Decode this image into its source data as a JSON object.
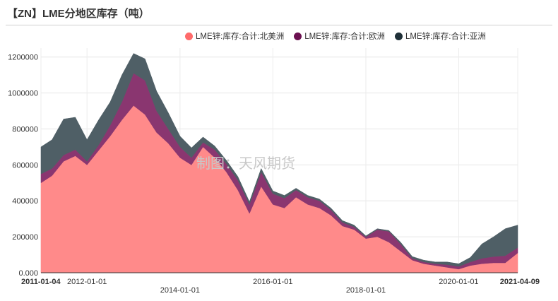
{
  "title": "【ZN】LME分地区库存（吨）",
  "watermark": "制图：天风期货",
  "colors": {
    "north_america": "#ff8a8a",
    "europe": "#8a3670",
    "asia": "#4f5f66"
  },
  "chart_data": {
    "type": "area",
    "stacked": true,
    "x": [
      "2011-01-04",
      "2011-04-01",
      "2011-07-01",
      "2011-10-01",
      "2012-01-01",
      "2012-04-01",
      "2012-07-01",
      "2012-10-01",
      "2013-01-01",
      "2013-04-01",
      "2013-07-01",
      "2013-10-01",
      "2014-01-01",
      "2014-04-01",
      "2014-07-01",
      "2014-10-01",
      "2015-01-01",
      "2015-04-01",
      "2015-07-01",
      "2015-10-01",
      "2016-01-01",
      "2016-04-01",
      "2016-07-01",
      "2016-10-01",
      "2017-01-01",
      "2017-04-01",
      "2017-07-01",
      "2017-10-01",
      "2018-01-01",
      "2018-04-01",
      "2018-07-01",
      "2018-10-01",
      "2019-01-01",
      "2019-04-01",
      "2019-07-01",
      "2019-10-01",
      "2020-01-01",
      "2020-04-01",
      "2020-07-01",
      "2020-10-01",
      "2021-01-01",
      "2021-04-09"
    ],
    "series": [
      {
        "name": "LME锌:库存:合计:北美洲",
        "values": [
          500000,
          540000,
          620000,
          650000,
          600000,
          680000,
          760000,
          850000,
          930000,
          880000,
          780000,
          720000,
          640000,
          600000,
          700000,
          640000,
          560000,
          460000,
          330000,
          480000,
          380000,
          360000,
          420000,
          380000,
          360000,
          320000,
          260000,
          240000,
          190000,
          200000,
          170000,
          120000,
          70000,
          50000,
          40000,
          30000,
          20000,
          40000,
          50000,
          55000,
          55000,
          110000
        ]
      },
      {
        "name": "LME锌:库存:合计:欧洲",
        "values": [
          50000,
          40000,
          35000,
          35000,
          20000,
          30000,
          60000,
          100000,
          180000,
          190000,
          120000,
          80000,
          60000,
          40000,
          25000,
          45000,
          45000,
          55000,
          50000,
          80000,
          60000,
          55000,
          40000,
          40000,
          40000,
          30000,
          20000,
          15000,
          10000,
          40000,
          60000,
          40000,
          10000,
          10000,
          10000,
          15000,
          15000,
          20000,
          30000,
          35000,
          40000,
          30000
        ]
      },
      {
        "name": "LME锌:库存:合计:亚洲",
        "values": [
          150000,
          160000,
          200000,
          180000,
          120000,
          140000,
          130000,
          150000,
          110000,
          120000,
          110000,
          90000,
          60000,
          55000,
          30000,
          20000,
          20000,
          20000,
          15000,
          20000,
          15000,
          15000,
          10000,
          10000,
          10000,
          10000,
          10000,
          10000,
          5000,
          5000,
          5000,
          10000,
          10000,
          10000,
          10000,
          15000,
          15000,
          25000,
          80000,
          110000,
          150000,
          125000
        ]
      }
    ],
    "ylim": [
      0,
      1250000
    ],
    "y_ticks": [
      0,
      200000,
      400000,
      600000,
      800000,
      1000000,
      1200000
    ],
    "y_tick_labels": [
      "0.000",
      "200000",
      "400000",
      "600000",
      "800000",
      "1000000",
      "1200000"
    ],
    "x_tick_labels_row1": [
      "2011-01-04",
      "2012-01-01",
      "2016-01-01",
      "2020-01-01",
      "2021-04-09"
    ],
    "x_tick_labels_row2": [
      "2014-01-01",
      "2018-01-01"
    ],
    "legend_position": "top"
  }
}
